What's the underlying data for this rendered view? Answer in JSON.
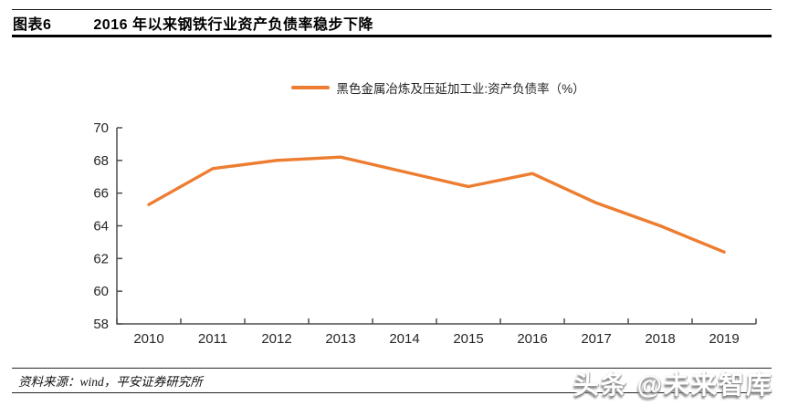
{
  "header": {
    "tag": "图表6",
    "title": "2016 年以来钢铁行业资产负债率稳步下降"
  },
  "legend": {
    "marker": "orange-line-marker"
  },
  "chart_data": {
    "type": "line",
    "title": "",
    "xlabel": "",
    "ylabel": "",
    "categories": [
      "2010",
      "2011",
      "2012",
      "2013",
      "2014",
      "2015",
      "2016",
      "2017",
      "2018",
      "2019"
    ],
    "series": [
      {
        "name": "黑色金属冶炼及压延加工业:资产负债率（%）",
        "values": [
          65.3,
          67.5,
          68.0,
          68.2,
          67.3,
          66.4,
          67.2,
          65.4,
          64.0,
          62.4
        ]
      }
    ],
    "ylim": [
      58,
      70
    ],
    "ytick_step": 2,
    "grid": false,
    "legend_position": "top-center",
    "line_color": "#ED7D31",
    "axis_color": "#4d4d4d",
    "tick_label_color": "#262626"
  },
  "footer": {
    "source": "资料来源：wind，平安证券研究所"
  },
  "watermark": {
    "text": "头条 @未来智库"
  }
}
